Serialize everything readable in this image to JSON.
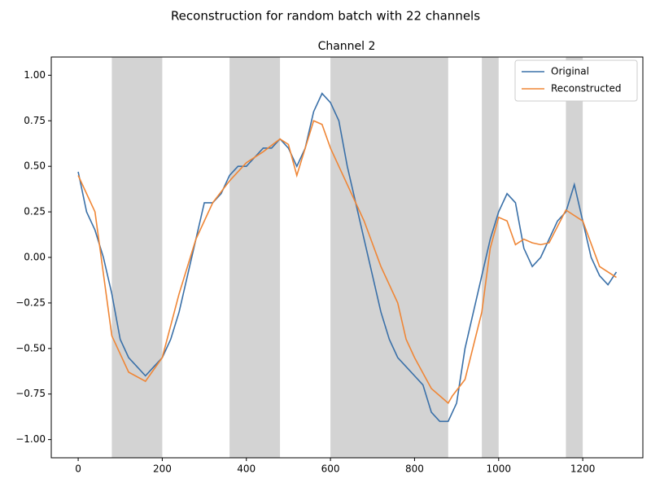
{
  "chart_data": {
    "type": "line",
    "suptitle": "Reconstruction for random batch with 22 channels",
    "title": "Channel 2",
    "xlim": [
      -64,
      1343
    ],
    "ylim": [
      -1.1,
      1.1
    ],
    "xticks": [
      0,
      200,
      400,
      600,
      800,
      1000,
      1200
    ],
    "yticks": [
      {
        "value": -1,
        "label": "−1.00"
      },
      {
        "value": -0.75,
        "label": "−0.75"
      },
      {
        "value": -0.5,
        "label": "−0.50"
      },
      {
        "value": -0.25,
        "label": "−0.25"
      },
      {
        "value": 0,
        "label": "0.00"
      },
      {
        "value": 0.25,
        "label": "0.25"
      },
      {
        "value": 0.5,
        "label": "0.50"
      },
      {
        "value": 0.75,
        "label": "0.75"
      },
      {
        "value": 1,
        "label": "1.00"
      }
    ],
    "shaded_regions": [
      [
        80,
        200
      ],
      [
        360,
        480
      ],
      [
        600,
        880
      ],
      [
        960,
        1000
      ],
      [
        1160,
        1200
      ]
    ],
    "shade_color": "#d3d3d3",
    "legend": "upper right",
    "series": [
      {
        "name": "Original",
        "color": "#3a70a8",
        "x": [
          0,
          20,
          40,
          60,
          80,
          100,
          120,
          140,
          160,
          180,
          200,
          220,
          240,
          260,
          280,
          300,
          320,
          340,
          360,
          380,
          400,
          420,
          440,
          460,
          480,
          500,
          520,
          540,
          560,
          580,
          600,
          620,
          640,
          660,
          680,
          700,
          720,
          740,
          760,
          780,
          800,
          820,
          840,
          860,
          880,
          900,
          920,
          940,
          960,
          980,
          1000,
          1020,
          1040,
          1060,
          1080,
          1100,
          1120,
          1140,
          1160,
          1180,
          1200,
          1220,
          1240,
          1260,
          1280
        ],
        "values": [
          0.47,
          0.25,
          0.15,
          0.0,
          -0.2,
          -0.45,
          -0.55,
          -0.6,
          -0.65,
          -0.6,
          -0.55,
          -0.45,
          -0.3,
          -0.1,
          0.1,
          0.3,
          0.3,
          0.35,
          0.45,
          0.5,
          0.5,
          0.55,
          0.6,
          0.6,
          0.65,
          0.6,
          0.5,
          0.6,
          0.8,
          0.9,
          0.85,
          0.75,
          0.5,
          0.3,
          0.1,
          -0.1,
          -0.3,
          -0.45,
          -0.55,
          -0.6,
          -0.65,
          -0.7,
          -0.85,
          -0.9,
          -0.9,
          -0.8,
          -0.5,
          -0.3,
          -0.1,
          0.1,
          0.25,
          0.35,
          0.3,
          0.05,
          -0.05,
          0.0,
          0.1,
          0.2,
          0.25,
          0.4,
          0.2,
          0.0,
          -0.1,
          -0.15,
          -0.08
        ]
      },
      {
        "name": "Reconstructed",
        "color": "#ef8636",
        "x": [
          0,
          40,
          80,
          120,
          160,
          200,
          240,
          280,
          320,
          360,
          400,
          440,
          480,
          500,
          520,
          540,
          560,
          580,
          600,
          640,
          680,
          720,
          760,
          780,
          800,
          840,
          880,
          890,
          920,
          960,
          980,
          1000,
          1020,
          1040,
          1060,
          1080,
          1100,
          1120,
          1160,
          1200,
          1240,
          1280
        ],
        "values": [
          0.45,
          0.25,
          -0.43,
          -0.63,
          -0.68,
          -0.55,
          -0.2,
          0.1,
          0.3,
          0.42,
          0.52,
          0.58,
          0.65,
          0.62,
          0.45,
          0.6,
          0.75,
          0.73,
          0.6,
          0.4,
          0.2,
          -0.05,
          -0.25,
          -0.45,
          -0.55,
          -0.72,
          -0.8,
          -0.76,
          -0.67,
          -0.3,
          0.05,
          0.22,
          0.2,
          0.07,
          0.1,
          0.08,
          0.07,
          0.08,
          0.26,
          0.2,
          -0.05,
          -0.11
        ]
      }
    ]
  }
}
